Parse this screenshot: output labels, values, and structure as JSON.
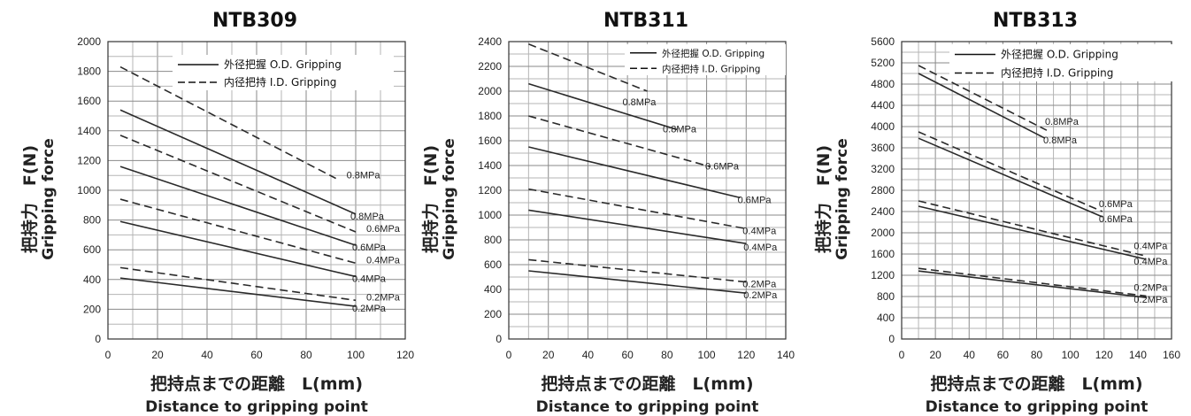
{
  "chart_data": [
    {
      "type": "line",
      "title": "NTB309",
      "xlabel": "把持点までの距離　L(mm)",
      "xlabel_en": "Distance to gripping point",
      "ylabel": "把持力　F(N)",
      "ylabel_en": "Gripping force",
      "xlim": [
        0,
        120
      ],
      "ylim": [
        0,
        2000
      ],
      "xticks": [
        "0",
        "20",
        "40",
        "60",
        "80",
        "100",
        "120"
      ],
      "yticks": [
        "0",
        "200",
        "400",
        "600",
        "800",
        "1000",
        "1200",
        "1400",
        "1600",
        "1800",
        "2000"
      ],
      "grid": true,
      "legend": [
        {
          "label": "外径把握 O.D. Gripping",
          "style": "solid"
        },
        {
          "label": "内径把持 I.D. Gripping",
          "style": "dashed"
        }
      ],
      "series": [
        {
          "style": "dashed",
          "label": "0.8MPa",
          "x": [
            5,
            92
          ],
          "y": [
            1830,
            1080
          ]
        },
        {
          "style": "solid",
          "label": "0.8MPa",
          "x": [
            5,
            100
          ],
          "y": [
            1540,
            840
          ]
        },
        {
          "style": "dashed",
          "label": "0.6MPa",
          "x": [
            5,
            100
          ],
          "y": [
            1370,
            720
          ]
        },
        {
          "style": "solid",
          "label": "0.6MPa",
          "x": [
            5,
            100
          ],
          "y": [
            1160,
            630
          ]
        },
        {
          "style": "dashed",
          "label": "0.4MPa",
          "x": [
            5,
            100
          ],
          "y": [
            940,
            510
          ]
        },
        {
          "style": "solid",
          "label": "0.4MPa",
          "x": [
            5,
            100
          ],
          "y": [
            790,
            420
          ]
        },
        {
          "style": "dashed",
          "label": "0.2MPa",
          "x": [
            5,
            100
          ],
          "y": [
            480,
            260
          ]
        },
        {
          "style": "solid",
          "label": "0.2MPa",
          "x": [
            5,
            100
          ],
          "y": [
            410,
            220
          ]
        }
      ]
    },
    {
      "type": "line",
      "title": "NTB311",
      "xlabel": "把持点までの距離　L(mm)",
      "xlabel_en": "Distance to gripping point",
      "ylabel": "把持力　F(N)",
      "ylabel_en": "Gripping force",
      "xlim": [
        0,
        140
      ],
      "ylim": [
        0,
        2400
      ],
      "xticks": [
        "0",
        "20",
        "40",
        "60",
        "80",
        "100",
        "120",
        "140"
      ],
      "yticks": [
        "0",
        "200",
        "400",
        "600",
        "800",
        "1000",
        "1200",
        "1400",
        "1600",
        "1800",
        "2000",
        "2200",
        "2400"
      ],
      "grid": true,
      "legend": [
        {
          "label": "外径把握 O.D. Gripping",
          "style": "solid"
        },
        {
          "label": "内径把持 I.D. Gripping",
          "style": "dashed"
        }
      ],
      "series": [
        {
          "style": "dashed",
          "label": "0.8MPa",
          "x": [
            10,
            70
          ],
          "y": [
            2380,
            2000
          ]
        },
        {
          "style": "solid",
          "label": "0.8MPa",
          "x": [
            10,
            85
          ],
          "y": [
            2060,
            1690
          ]
        },
        {
          "style": "dashed",
          "label": "0.6MPa",
          "x": [
            10,
            102
          ],
          "y": [
            1800,
            1390
          ]
        },
        {
          "style": "solid",
          "label": "0.6MPa",
          "x": [
            10,
            117
          ],
          "y": [
            1550,
            1140
          ]
        },
        {
          "style": "dashed",
          "label": "0.4MPa",
          "x": [
            10,
            120
          ],
          "y": [
            1210,
            890
          ]
        },
        {
          "style": "solid",
          "label": "0.4MPa",
          "x": [
            10,
            120
          ],
          "y": [
            1040,
            770
          ]
        },
        {
          "style": "dashed",
          "label": "0.2MPa",
          "x": [
            10,
            120
          ],
          "y": [
            640,
            460
          ]
        },
        {
          "style": "solid",
          "label": "0.2MPa",
          "x": [
            10,
            120
          ],
          "y": [
            550,
            370
          ]
        }
      ]
    },
    {
      "type": "line",
      "title": "NTB313",
      "xlabel": "把持点までの距離　L(mm)",
      "xlabel_en": "Distance to gripping point",
      "ylabel": "把持力　F(N)",
      "ylabel_en": "Gripping force",
      "xlim": [
        0,
        160
      ],
      "ylim": [
        0,
        5600
      ],
      "xticks": [
        "0",
        "20",
        "40",
        "60",
        "80",
        "100",
        "120",
        "140",
        "160"
      ],
      "yticks": [
        "0",
        "400",
        "800",
        "1200",
        "1600",
        "2000",
        "2400",
        "2800",
        "3200",
        "3600",
        "4000",
        "4400",
        "4800",
        "5200",
        "5600"
      ],
      "grid": true,
      "legend": [
        {
          "label": "外径把握 O.D. Gripping",
          "style": "solid"
        },
        {
          "label": "内径把持 I.D. Gripping",
          "style": "dashed"
        }
      ],
      "series": [
        {
          "style": "dashed",
          "label": "0.8MPa",
          "x": [
            10,
            86
          ],
          "y": [
            5150,
            3930
          ]
        },
        {
          "style": "solid",
          "label": "0.8MPa",
          "x": [
            10,
            85
          ],
          "y": [
            5000,
            3780
          ]
        },
        {
          "style": "dashed",
          "label": "0.6MPa",
          "x": [
            10,
            119
          ],
          "y": [
            3900,
            2400
          ]
        },
        {
          "style": "solid",
          "label": "0.6MPa",
          "x": [
            10,
            119
          ],
          "y": [
            3780,
            2300
          ]
        },
        {
          "style": "dashed",
          "label": "0.4MPa",
          "x": [
            10,
            145
          ],
          "y": [
            2600,
            1560
          ]
        },
        {
          "style": "solid",
          "label": "0.4MPa",
          "x": [
            10,
            145
          ],
          "y": [
            2500,
            1500
          ]
        },
        {
          "style": "dashed",
          "label": "0.2MPa",
          "x": [
            10,
            145
          ],
          "y": [
            1330,
            810
          ]
        },
        {
          "style": "solid",
          "label": "0.2MPa",
          "x": [
            10,
            145
          ],
          "y": [
            1280,
            780
          ]
        }
      ]
    }
  ]
}
